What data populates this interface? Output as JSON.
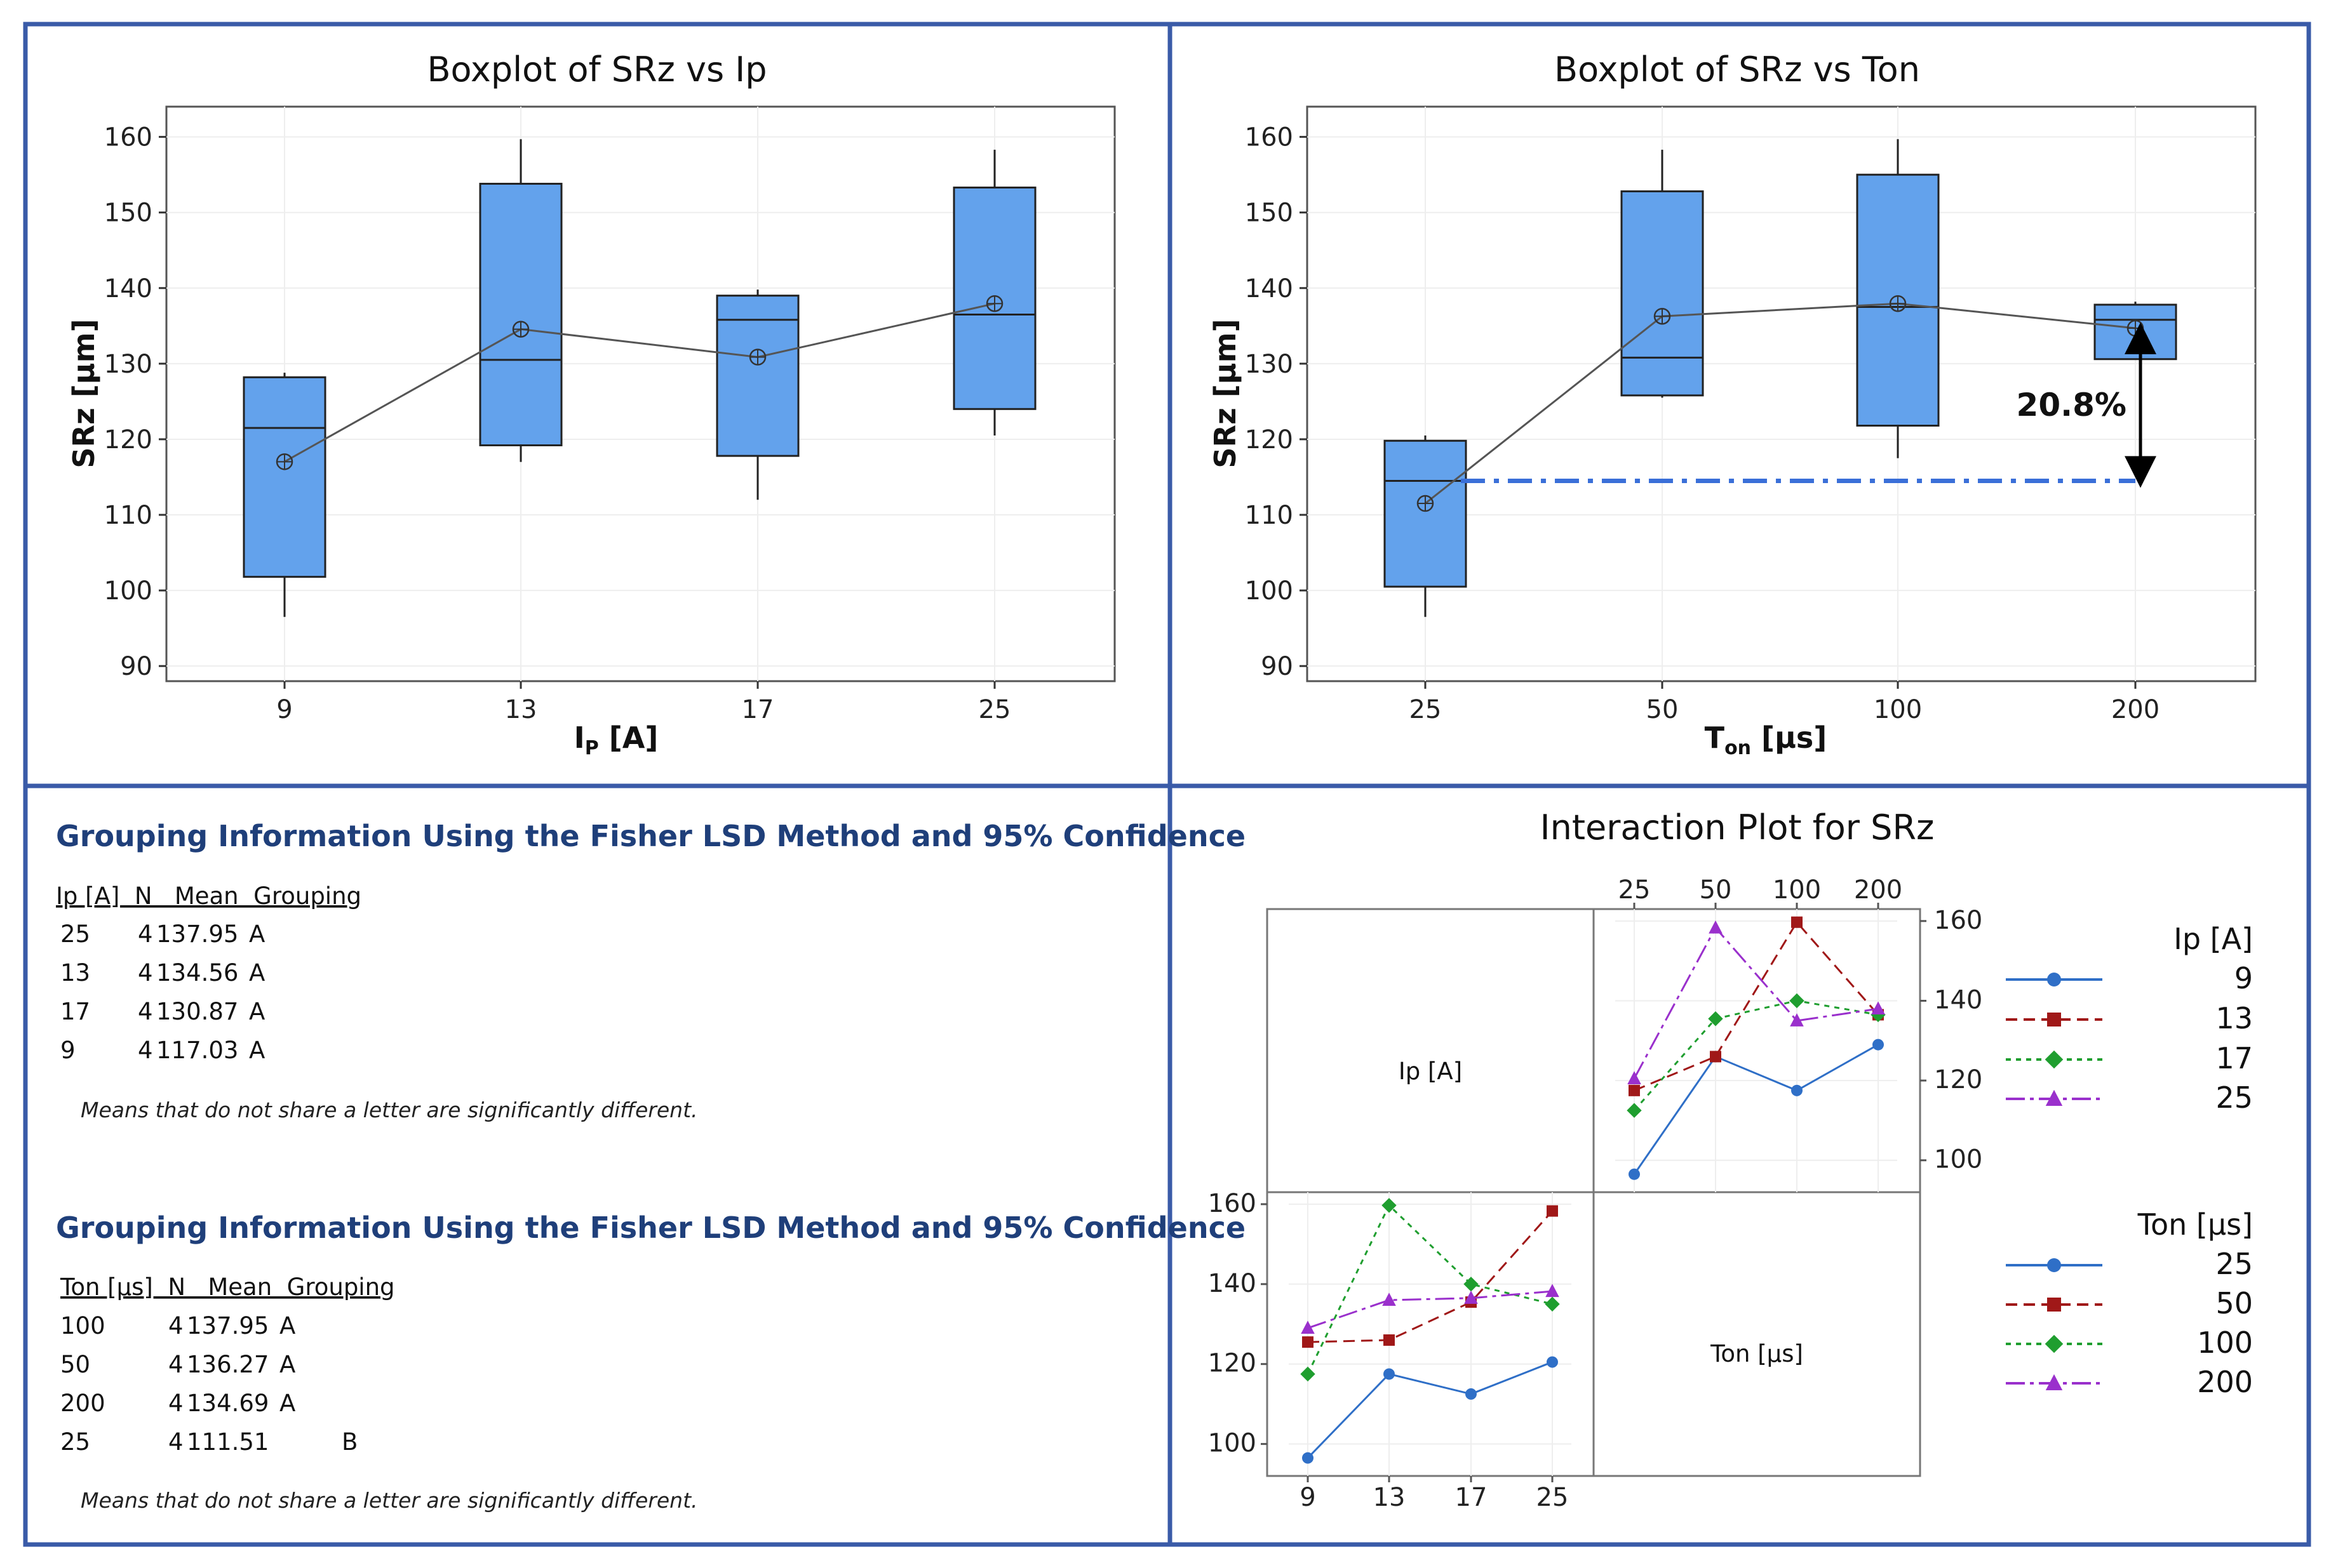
{
  "colors": {
    "panel_border": "#3a5ba8",
    "box_fill": "#63a2ec",
    "box_stroke": "#222222",
    "ref_line": "#3a6fd8",
    "table_title": "#1f3f7a",
    "series": [
      "#2f6fc7",
      "#a01818",
      "#1f9e2f",
      "#9a30cc"
    ]
  },
  "chart_data": [
    {
      "id": "box_ip",
      "type": "box",
      "title": "Boxplot of SRz vs Ip",
      "xlabel": "Ip [A]",
      "xlabel_main": "I",
      "xlabel_sub": "P",
      "xlabel_rest": " [A]",
      "ylabel": "SRz [µm]",
      "ylim": [
        88,
        164
      ],
      "yticks": [
        90,
        100,
        110,
        120,
        130,
        140,
        150,
        160
      ],
      "categories": [
        "9",
        "13",
        "17",
        "25"
      ],
      "boxes": [
        {
          "min": 96.5,
          "q1": 101.8,
          "median": 121.5,
          "q3": 128.2,
          "max": 128.8,
          "mean": 117.03
        },
        {
          "min": 117.0,
          "q1": 119.2,
          "median": 130.5,
          "q3": 153.8,
          "max": 159.7,
          "mean": 134.56
        },
        {
          "min": 112.0,
          "q1": 117.8,
          "median": 135.8,
          "q3": 139.0,
          "max": 139.8,
          "mean": 130.87
        },
        {
          "min": 120.5,
          "q1": 124.0,
          "median": 136.5,
          "q3": 153.3,
          "max": 158.3,
          "mean": 137.95
        }
      ]
    },
    {
      "id": "box_ton",
      "type": "box",
      "title": "Boxplot of SRz vs Ton",
      "xlabel": "Ton [µs]",
      "xlabel_main": "T",
      "xlabel_sub": "on",
      "xlabel_rest": " [µs]",
      "ylabel": "SRz [µm]",
      "ylim": [
        88,
        164
      ],
      "yticks": [
        90,
        100,
        110,
        120,
        130,
        140,
        150,
        160
      ],
      "categories": [
        "25",
        "50",
        "100",
        "200"
      ],
      "boxes": [
        {
          "min": 96.5,
          "q1": 100.5,
          "median": 114.5,
          "q3": 119.8,
          "max": 120.5,
          "mean": 111.51
        },
        {
          "min": 125.5,
          "q1": 125.8,
          "median": 130.8,
          "q3": 152.8,
          "max": 158.3,
          "mean": 136.27
        },
        {
          "min": 117.5,
          "q1": 121.8,
          "median": 137.5,
          "q3": 155.0,
          "max": 159.7,
          "mean": 137.95
        },
        {
          "min": 130.5,
          "q1": 130.6,
          "median": 135.8,
          "q3": 137.8,
          "max": 138.2,
          "mean": 134.69
        }
      ],
      "reference_value": 114.5,
      "annotation": "20.8%"
    },
    {
      "id": "interaction",
      "type": "line",
      "title": "Interaction Plot for SRz",
      "diag_ip": "Ip [A]",
      "diag_ton": "Ton [µs]",
      "ylim": [
        92,
        163
      ],
      "yticks": [
        100,
        120,
        140,
        160
      ],
      "top_right": {
        "x": [
          "25",
          "50",
          "100",
          "200"
        ],
        "series": [
          {
            "name": "9",
            "values": [
              96.5,
              126,
              117.5,
              129
            ]
          },
          {
            "name": "13",
            "values": [
              117.5,
              126,
              159.7,
              136.5
            ]
          },
          {
            "name": "17",
            "values": [
              112.5,
              135.5,
              140,
              136.5
            ]
          },
          {
            "name": "25",
            "values": [
              120.5,
              158.3,
              135,
              138
            ]
          }
        ]
      },
      "bottom_left": {
        "x": [
          "9",
          "13",
          "17",
          "25"
        ],
        "series": [
          {
            "name": "25",
            "values": [
              96.5,
              117.5,
              112.5,
              120.5
            ]
          },
          {
            "name": "50",
            "values": [
              125.5,
              126,
              135.5,
              158.3
            ]
          },
          {
            "name": "100",
            "values": [
              117.5,
              159.7,
              140,
              135
            ]
          },
          {
            "name": "200",
            "values": [
              129,
              136,
              136.5,
              138.2
            ]
          }
        ]
      },
      "legend_ip": {
        "title": "Ip [A]",
        "entries": [
          "9",
          "13",
          "17",
          "25"
        ]
      },
      "legend_ton": {
        "title": "Ton [µs]",
        "entries": [
          "25",
          "50",
          "100",
          "200"
        ]
      }
    }
  ],
  "grouping_ip": {
    "title": "Grouping Information Using the Fisher LSD Method and 95% Confidence",
    "header": "Ip [A]  N   Mean  Grouping",
    "rows": [
      {
        "level": "25",
        "n": "4",
        "mean": "137.95",
        "group": "A"
      },
      {
        "level": "13",
        "n": "4",
        "mean": "134.56",
        "group": "A"
      },
      {
        "level": "17",
        "n": "4",
        "mean": "130.87",
        "group": "A"
      },
      {
        "level": "9",
        "n": "4",
        "mean": "117.03",
        "group": "A"
      }
    ],
    "note": "Means that do not share a letter are significantly different."
  },
  "grouping_ton": {
    "title": "Grouping Information Using the Fisher LSD Method and 95% Confidence",
    "header": "Ton [µs]  N   Mean  Grouping",
    "rows": [
      {
        "level": "100",
        "n": "4",
        "mean": "137.95",
        "group": "A"
      },
      {
        "level": "50",
        "n": "4",
        "mean": "136.27",
        "group": "A"
      },
      {
        "level": "200",
        "n": "4",
        "mean": "134.69",
        "group": "A"
      },
      {
        "level": "25",
        "n": "4",
        "mean": "111.51",
        "group": "B"
      }
    ],
    "note": "Means that do not share a letter are significantly different."
  }
}
